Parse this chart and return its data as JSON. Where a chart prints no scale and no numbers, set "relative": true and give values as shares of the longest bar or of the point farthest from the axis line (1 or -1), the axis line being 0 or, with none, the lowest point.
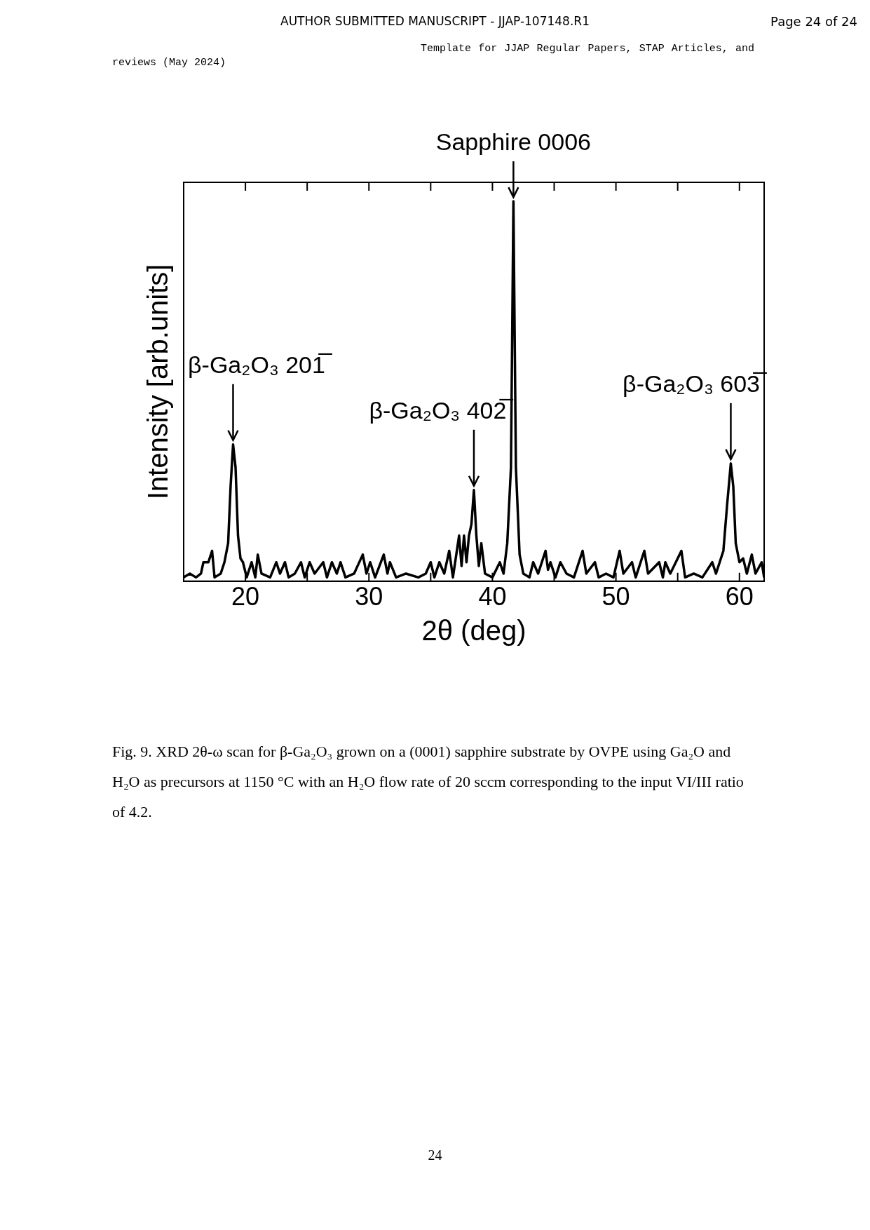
{
  "chart_data": {
    "type": "line",
    "relative": true,
    "xlabel": "2θ (deg)",
    "ylabel": "Intensity [arb.units]",
    "xlim": [
      15,
      62
    ],
    "xticks": [
      20,
      {
        "value": 25,
        "label": null
      },
      30,
      {
        "value": 35,
        "label": null
      },
      40,
      {
        "value": 45,
        "label": null
      },
      50,
      {
        "value": 55,
        "label": null
      },
      60
    ],
    "grid": false,
    "legend": false,
    "marker": "none",
    "line_style": "solid",
    "series": [
      {
        "color": "#000000",
        "x": [
          15,
          15.5,
          16,
          16.4,
          16.6,
          17.0,
          17.3,
          17.5,
          18.0,
          18.3,
          18.6,
          18.8,
          19.0,
          19.2,
          19.4,
          19.6,
          19.8,
          20.1,
          20.5,
          20.8,
          21.0,
          21.3,
          22.0,
          22.5,
          22.8,
          23.2,
          23.5,
          24.0,
          24.5,
          24.8,
          25.2,
          25.6,
          26.3,
          26.6,
          27.0,
          27.4,
          27.7,
          28.1,
          28.8,
          29.5,
          29.8,
          30.1,
          30.5,
          31.2,
          31.5,
          31.7,
          32.2,
          33,
          34,
          34.6,
          35.0,
          35.3,
          35.7,
          36.1,
          36.5,
          36.8,
          37.3,
          37.5,
          37.7,
          37.9,
          38.1,
          38.3,
          38.5,
          38.7,
          38.9,
          39.1,
          39.4,
          40,
          40.6,
          40.9,
          41.2,
          41.5,
          41.7,
          41.9,
          42.2,
          42.5,
          43.0,
          43.3,
          43.7,
          44.3,
          44.5,
          44.7,
          45.1,
          45.5,
          46,
          46.6,
          47.3,
          47.6,
          48.3,
          48.6,
          49.2,
          49.8,
          50.3,
          50.6,
          51.3,
          51.6,
          52.3,
          52.6,
          53.5,
          53.8,
          54.0,
          54.4,
          55.3,
          55.6,
          56.3,
          57,
          57.8,
          58.1,
          58.7,
          59.0,
          59.3,
          59.5,
          59.7,
          60.0,
          60.3,
          60.6,
          61.0,
          61.3,
          61.8,
          62
        ],
        "values": [
          0.01,
          0.02,
          0.01,
          0.02,
          0.05,
          0.05,
          0.08,
          0.01,
          0.02,
          0.05,
          0.1,
          0.25,
          0.36,
          0.3,
          0.12,
          0.06,
          0.05,
          0.01,
          0.05,
          0.01,
          0.07,
          0.02,
          0.01,
          0.05,
          0.02,
          0.05,
          0.01,
          0.02,
          0.05,
          0.01,
          0.05,
          0.02,
          0.05,
          0.01,
          0.05,
          0.02,
          0.05,
          0.01,
          0.02,
          0.07,
          0.02,
          0.05,
          0.01,
          0.07,
          0.02,
          0.05,
          0.01,
          0.02,
          0.01,
          0.02,
          0.05,
          0.01,
          0.05,
          0.02,
          0.08,
          0.01,
          0.12,
          0.04,
          0.12,
          0.05,
          0.12,
          0.15,
          0.24,
          0.12,
          0.04,
          0.1,
          0.02,
          0.01,
          0.05,
          0.02,
          0.1,
          0.3,
          1,
          0.3,
          0.07,
          0.02,
          0.01,
          0.05,
          0.02,
          0.08,
          0.03,
          0.05,
          0.01,
          0.05,
          0.02,
          0.01,
          0.08,
          0.02,
          0.05,
          0.01,
          0.02,
          0.01,
          0.08,
          0.02,
          0.05,
          0.01,
          0.08,
          0.02,
          0.05,
          0.01,
          0.05,
          0.02,
          0.08,
          0.01,
          0.02,
          0.01,
          0.05,
          0.02,
          0.08,
          0.2,
          0.31,
          0.25,
          0.1,
          0.05,
          0.06,
          0.02,
          0.07,
          0.02,
          0.05,
          0.01
        ]
      }
    ],
    "annotations": [
      {
        "text": "β-Ga₂O₃ 201̅",
        "x": 19.0,
        "y": 0.36
      },
      {
        "text": "β-Ga₂O₃ 402̅",
        "x": 38.5,
        "y": 0.24
      },
      {
        "text": "Sapphire 0006",
        "x": 41.7,
        "y": 1
      },
      {
        "text": "β-Ga₂O₃ 603̅",
        "x": 59.3,
        "y": 0.31
      },
      "AUTHOR SUBMITTED MANUSCRIPT - JJAP-107148.R1",
      "Page 24 of 24",
      "Template for JJAP Regular Papers, STAP Articles, and reviews (May 2024)",
      "Fig. 9. XRD 2θ-ω scan for β-Ga₂O₃ grown on a (0001) sapphire substrate by OVPE using Ga₂O and H₂O as precursors at 1150 °C with an H₂O flow rate of 20 sccm corresponding to the input VI/III ratio of 4.2.",
      "24"
    ]
  }
}
